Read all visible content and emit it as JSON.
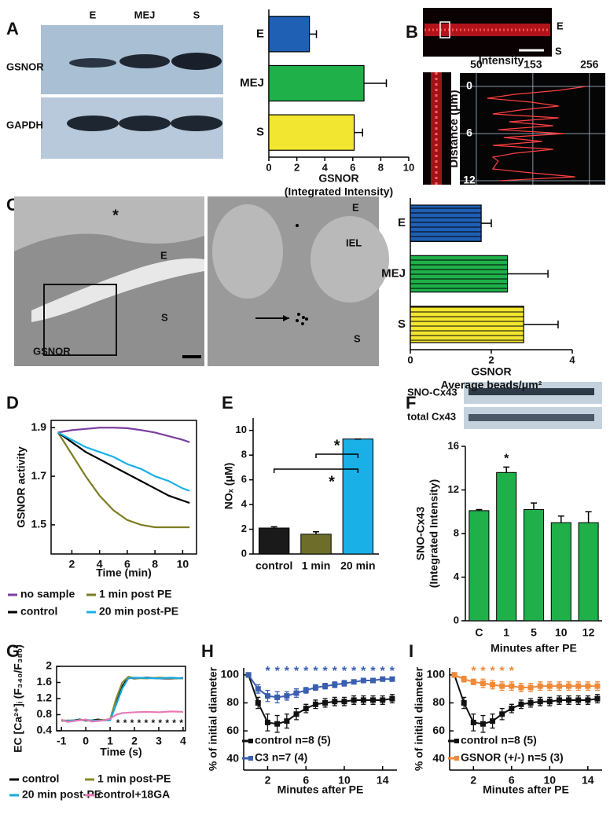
{
  "figure": {
    "panel_labels": [
      "A",
      "B",
      "C",
      "D",
      "E",
      "F",
      "G",
      "H",
      "I"
    ],
    "blot_A": {
      "lanes": [
        "E",
        "MEJ",
        "S"
      ],
      "rows": [
        "GSNOR",
        "GAPDH"
      ]
    },
    "image_B": {
      "labels": [
        "E",
        "S"
      ]
    },
    "image_C1": {
      "labels": [
        "*",
        "E",
        "S",
        "GSNOR"
      ]
    },
    "image_C2": {
      "labels": [
        "E",
        "IEL",
        "S"
      ]
    },
    "blot_F": {
      "rows": [
        "SNO-Cx43",
        "total Cx43"
      ]
    }
  },
  "chart_data": [
    {
      "type": "bar",
      "orientation": "horizontal",
      "categories": [
        "E",
        "MEJ",
        "S"
      ],
      "values": [
        2.9,
        6.8,
        6.1
      ],
      "errors": [
        0.5,
        1.6,
        0.6
      ],
      "colors": [
        "#1f5fb4",
        "#1fb04a",
        "#f2e630"
      ],
      "xlim": [
        0,
        10
      ],
      "xticks": [
        0,
        2,
        4,
        6,
        8,
        10
      ],
      "xlabel": [
        "GSNOR",
        "(Integrated Intensity)"
      ]
    },
    {
      "type": "line",
      "orientation": "horizontal",
      "ylabel": "Intensity",
      "xlabel": "Distance (μm)",
      "x": [
        0,
        0.5,
        1,
        1.5,
        2,
        2.5,
        3,
        3.5,
        4,
        4.5,
        5,
        5.5,
        6,
        6.5,
        7,
        7.5,
        8,
        8.5,
        9,
        9.5,
        10,
        10.5,
        11,
        11.5,
        12
      ],
      "series": [
        {
          "color": "#ff4040",
          "values": [
            250,
            200,
            120,
            70,
            150,
            200,
            130,
            80,
            200,
            110,
            190,
            90,
            210,
            100,
            170,
            80,
            190,
            120,
            80,
            90,
            85,
            80,
            150,
            230,
            90
          ]
        }
      ],
      "ylim": [
        20,
        285
      ],
      "yticks": [
        50,
        153,
        256
      ],
      "xlim": [
        -1.7,
        12.5
      ],
      "xticks": [
        0,
        6,
        12
      ],
      "grid": true
    },
    {
      "type": "bar",
      "orientation": "horizontal",
      "hatch": true,
      "categories": [
        "E",
        "MEJ",
        "S"
      ],
      "values": [
        1.75,
        2.4,
        2.8
      ],
      "errors": [
        0.25,
        1.0,
        0.85
      ],
      "colors": [
        "#1f5fb4",
        "#1fb04a",
        "#f2e630"
      ],
      "xlim": [
        0,
        4
      ],
      "xticks": [
        0,
        2,
        4
      ],
      "xlabel": [
        "GSNOR",
        "Average beads/μm²"
      ]
    },
    {
      "type": "line",
      "ylabel": "GSNOR activity",
      "xlabel": "Time (min)",
      "box": true,
      "legend": "below",
      "x": [
        1,
        2,
        3,
        4,
        5,
        6,
        7,
        8,
        9,
        10,
        10.5
      ],
      "series": [
        {
          "name": "no sample",
          "color": "#7b3fa0",
          "values": [
            1.88,
            1.89,
            1.895,
            1.9,
            1.9,
            1.898,
            1.89,
            1.88,
            1.865,
            1.85,
            1.84
          ]
        },
        {
          "name": "1 min post PE",
          "color": "#7d7d22",
          "values": [
            1.88,
            1.79,
            1.7,
            1.62,
            1.56,
            1.52,
            1.5,
            1.49,
            1.49,
            1.49,
            1.49
          ]
        },
        {
          "name": "control",
          "color": "#000000",
          "values": [
            1.88,
            1.84,
            1.8,
            1.77,
            1.74,
            1.71,
            1.68,
            1.65,
            1.62,
            1.6,
            1.59
          ]
        },
        {
          "name": "20 min post-PE",
          "color": "#19b0e8",
          "values": [
            1.88,
            1.85,
            1.82,
            1.8,
            1.78,
            1.75,
            1.73,
            1.7,
            1.68,
            1.65,
            1.64
          ]
        }
      ],
      "xlim": [
        0.5,
        11
      ],
      "xticks": [
        2,
        4,
        6,
        8,
        10
      ],
      "ylim": [
        1.38,
        1.93
      ],
      "yticks": [
        1.5,
        1.7,
        1.9
      ]
    },
    {
      "type": "bar",
      "categories": [
        "control",
        "1 min",
        "20 min"
      ],
      "values": [
        2.1,
        1.6,
        9.3
      ],
      "errors": [
        0.1,
        0.2,
        0
      ],
      "colors": [
        "#1a1a1a",
        "#6e6e2a",
        "#19b0e8"
      ],
      "ylim": [
        0,
        11
      ],
      "yticks": [
        0,
        2,
        4,
        6,
        8,
        10
      ],
      "ylabel": "NOₓ (μM)",
      "annotations": [
        "*",
        "*"
      ]
    },
    {
      "type": "bar",
      "categories": [
        "C",
        "1",
        "5",
        "10",
        "12"
      ],
      "values": [
        10.1,
        13.6,
        10.2,
        9.0,
        9.0
      ],
      "errors": [
        0.1,
        0.5,
        0.6,
        0.6,
        1.0
      ],
      "colors": [
        "#1fb04a",
        "#1fb04a",
        "#1fb04a",
        "#1fb04a",
        "#1fb04a"
      ],
      "ylim": [
        0,
        16
      ],
      "yticks": [
        0,
        4,
        8,
        12,
        16
      ],
      "ylabel": [
        "SNO-Cx43",
        "(Integrated Intensity)"
      ],
      "xlabel": "Minutes after PE",
      "annotations": [
        "*"
      ]
    },
    {
      "type": "line",
      "ylabel": "EC [Ca²⁺]ᵢ (F₃₄₀/F₃₈₀)",
      "xlabel": "Time (s)",
      "box": true,
      "legend": "below",
      "x": [
        -1,
        -0.75,
        -0.5,
        -0.25,
        0,
        0.25,
        0.5,
        0.75,
        1,
        1.25,
        1.5,
        1.75,
        2,
        2.5,
        3,
        3.5,
        4
      ],
      "series": [
        {
          "name": "control",
          "color": "#000000",
          "values": [
            0.66,
            0.65,
            0.66,
            0.68,
            0.65,
            0.66,
            0.68,
            0.66,
            0.67,
            1.1,
            1.5,
            1.72,
            1.7,
            1.72,
            1.7,
            1.7,
            1.71
          ]
        },
        {
          "name": "1 min post-PE",
          "color": "#8a8a2a",
          "values": [
            0.64,
            0.66,
            0.65,
            0.67,
            0.66,
            0.65,
            0.66,
            0.67,
            0.68,
            1.2,
            1.6,
            1.74,
            1.71,
            1.7,
            1.72,
            1.71,
            1.7
          ]
        },
        {
          "name": "20 min post-PE",
          "color": "#19a9e0",
          "values": [
            0.67,
            0.64,
            0.66,
            0.66,
            0.67,
            0.66,
            0.65,
            0.66,
            0.66,
            1.05,
            1.45,
            1.7,
            1.72,
            1.71,
            1.7,
            1.72,
            1.7
          ]
        },
        {
          "name": "control+18GA",
          "color": "#e87ab5",
          "values": [
            0.68,
            0.62,
            0.64,
            0.66,
            0.68,
            0.63,
            0.64,
            0.66,
            0.7,
            0.8,
            0.84,
            0.85,
            0.86,
            0.87,
            0.86,
            0.88,
            0.87
          ]
        }
      ],
      "xlim": [
        -1.2,
        4.1
      ],
      "xticks": [
        -1,
        0,
        1,
        2,
        3,
        4
      ],
      "ylim": [
        0.4,
        2
      ],
      "yticks": [
        0.4,
        0.8,
        1.2,
        1.6,
        2
      ],
      "annotations": [
        "**********"
      ]
    },
    {
      "type": "line",
      "markers": true,
      "ylabel": "% of initial diameter",
      "xlabel": "Minutes after PE",
      "legend": "lower left",
      "x": [
        0,
        1,
        2,
        3,
        4,
        5,
        6,
        7,
        8,
        9,
        10,
        11,
        12,
        13,
        14,
        15
      ],
      "series": [
        {
          "name": "control n=8 (5)",
          "color": "#111111",
          "values": [
            100,
            80,
            66,
            65,
            67,
            72,
            76,
            79,
            80,
            81,
            81,
            82,
            82,
            82,
            82,
            83
          ],
          "errors": [
            1,
            4,
            6,
            6,
            5,
            4,
            3,
            3,
            3,
            3,
            3,
            3,
            3,
            3,
            3,
            3
          ]
        },
        {
          "name": "C3 n=7 (4)",
          "color": "#3a5fb0",
          "values": [
            100,
            90,
            85,
            84,
            85,
            87,
            89,
            91,
            92,
            93,
            94,
            95,
            96,
            96,
            97,
            97
          ],
          "errors": [
            1,
            3,
            4,
            4,
            3,
            3,
            2,
            2,
            2,
            2,
            2,
            1,
            1,
            1,
            1,
            1
          ]
        }
      ],
      "xlim": [
        -0.5,
        15.5
      ],
      "xticks": [
        2,
        6,
        10,
        14
      ],
      "ylim": [
        32,
        105
      ],
      "yticks": [
        40,
        60,
        80,
        100
      ],
      "annotations": [
        "* * * * * * * * * * * * * *"
      ]
    },
    {
      "type": "line",
      "markers": true,
      "ylabel": "% of initial diameter",
      "xlabel": "Minutes after PE",
      "legend": "lower left",
      "x": [
        0,
        1,
        2,
        3,
        4,
        5,
        6,
        7,
        8,
        9,
        10,
        11,
        12,
        13,
        14,
        15
      ],
      "series": [
        {
          "name": "control n=8 (5)",
          "color": "#111111",
          "values": [
            100,
            80,
            66,
            65,
            67,
            72,
            76,
            79,
            80,
            81,
            81,
            82,
            82,
            82,
            82,
            83
          ],
          "errors": [
            1,
            4,
            6,
            6,
            5,
            4,
            3,
            3,
            3,
            3,
            3,
            3,
            3,
            3,
            3,
            3
          ]
        },
        {
          "name": "GSNOR (+/-) n=5 (3)",
          "color": "#f08a3a",
          "values": [
            100,
            97,
            95,
            94,
            93,
            92,
            92,
            91,
            91,
            92,
            92,
            92,
            92,
            92,
            92,
            92
          ],
          "errors": [
            1,
            2,
            2,
            3,
            3,
            3,
            3,
            3,
            3,
            3,
            3,
            3,
            3,
            3,
            3,
            3
          ]
        }
      ],
      "xlim": [
        -0.5,
        15.5
      ],
      "xticks": [
        2,
        6,
        10,
        14
      ],
      "ylim": [
        32,
        105
      ],
      "yticks": [
        40,
        60,
        80,
        100
      ],
      "annotations": [
        "* * * * *"
      ]
    }
  ]
}
